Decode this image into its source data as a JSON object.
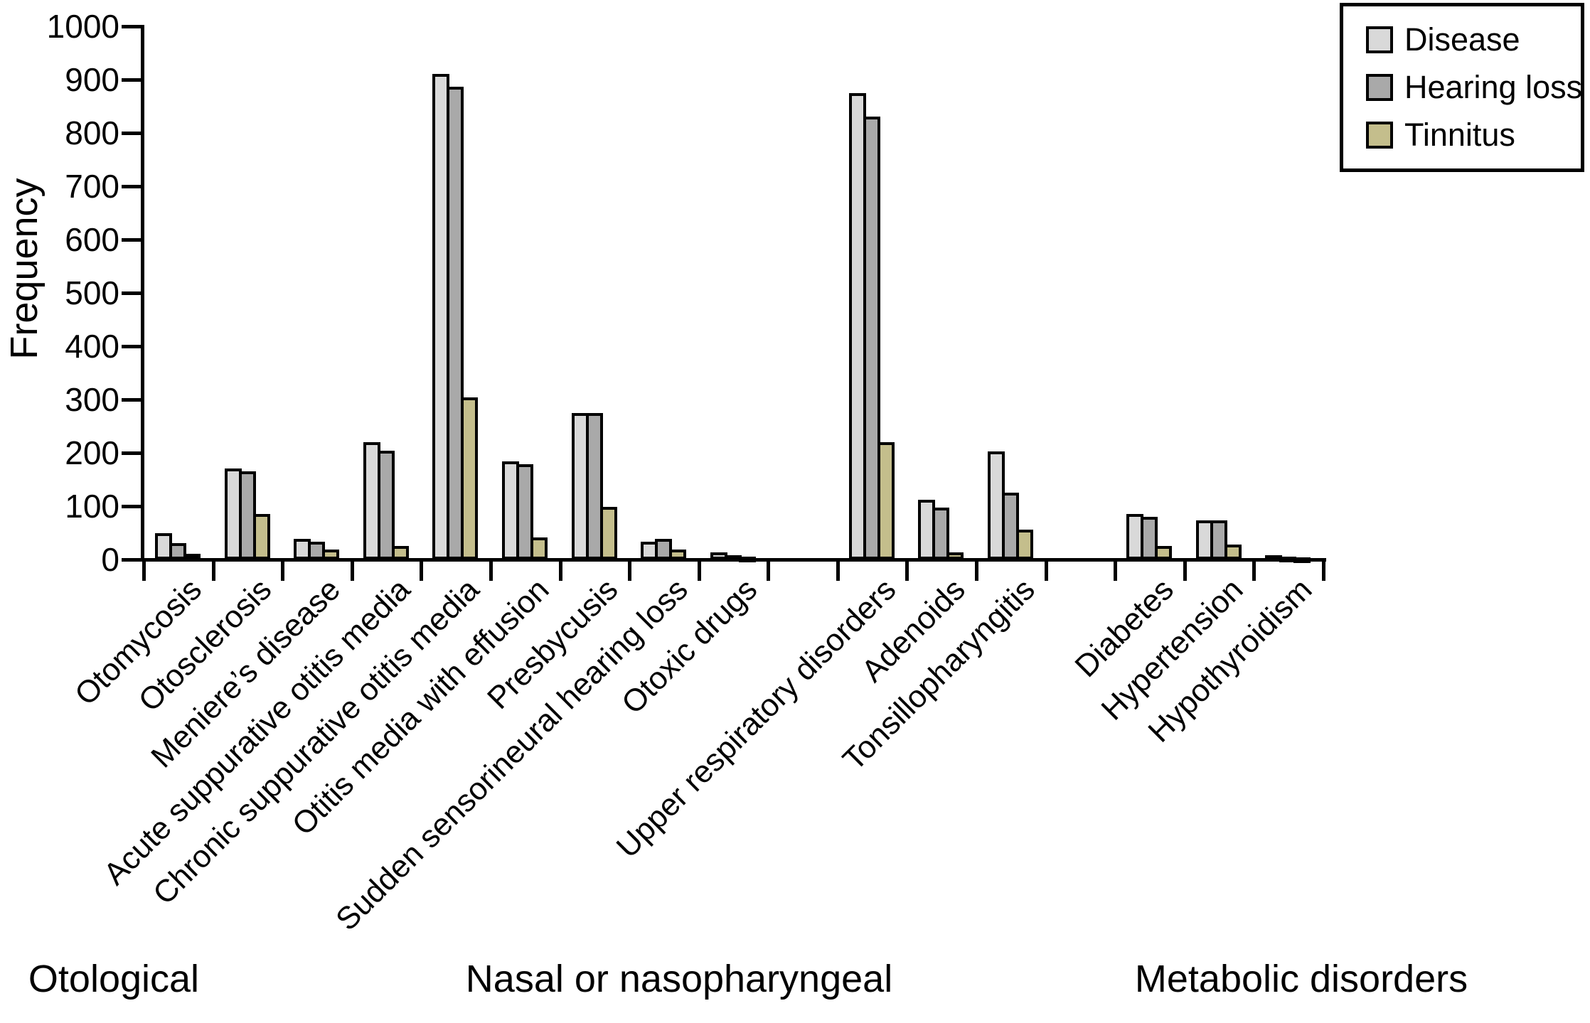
{
  "chart_data": {
    "type": "bar",
    "title": "",
    "ylabel": "Frequency",
    "xlabel": "",
    "ylim": [
      0,
      1000
    ],
    "ytick_step": 100,
    "yticks": [
      0,
      100,
      200,
      300,
      400,
      500,
      600,
      700,
      800,
      900,
      1000
    ],
    "grid": false,
    "legend_position": "top-right",
    "legend": [
      "Disease",
      "Hearing loss",
      "Tinnitus"
    ],
    "series_colors": [
      "#d9d9d9",
      "#a9a9a9",
      "#c4be8c"
    ],
    "colors": {
      "disease": "#d9d9d9",
      "hearing_loss": "#a9a9a9",
      "tinnitus": "#c4be8c",
      "bar_outline": "#000000",
      "axis": "#000000",
      "background": "#ffffff"
    },
    "categories": [
      "Otomycosis",
      "Otosclerosis",
      "Meniere’s disease",
      "Acute suppurative otitis media",
      "Chronic suppurative otitis media",
      "Otitis media with effusion",
      "Presbycusis",
      "Sudden sensorineural hearing loss",
      "Otoxic drugs",
      "Upper respiratory disorders",
      "Adenoids",
      "Tonsillopharyngitis",
      "Diabetes",
      "Hypertension",
      "Hypothyroidism"
    ],
    "sections": [
      {
        "label": "Otological",
        "category_indexes": [
          0,
          1,
          2,
          3,
          4,
          5,
          6,
          7,
          8
        ]
      },
      {
        "label": "Nasal or nasopharyngeal",
        "category_indexes": [
          9,
          10,
          11
        ]
      },
      {
        "label": "Metabolic disorders",
        "category_indexes": [
          12,
          13,
          14
        ]
      }
    ],
    "series": [
      {
        "name": "Disease",
        "values": [
          49,
          171,
          39,
          220,
          910,
          184,
          275,
          33,
          13,
          875,
          112,
          203,
          85,
          73,
          8
        ]
      },
      {
        "name": "Hearing loss",
        "values": [
          31,
          165,
          33,
          204,
          887,
          179,
          275,
          39,
          8,
          830,
          97,
          125,
          80,
          73,
          5
        ]
      },
      {
        "name": "Tinnitus",
        "values": [
          11,
          85,
          19,
          25,
          304,
          41,
          99,
          19,
          5,
          220,
          13,
          56,
          25,
          28,
          4
        ]
      }
    ]
  }
}
